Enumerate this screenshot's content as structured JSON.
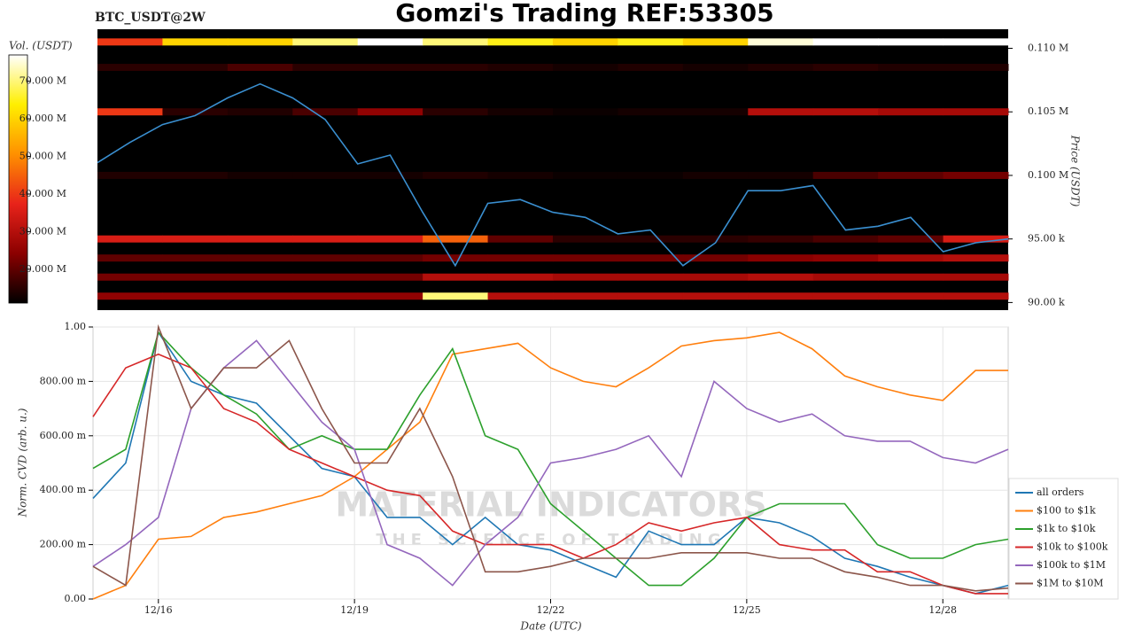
{
  "chart_data": [
    {
      "type": "heatmap",
      "title": "Gomzi's Trading REF:53305",
      "subtitle": "BTC_USDT@2W",
      "x_edges": [
        15,
        16,
        17,
        18,
        19,
        20,
        21,
        22,
        23,
        24,
        25,
        26,
        27,
        28,
        29
      ],
      "y": [
        110500,
        108500,
        105000,
        100000,
        95000,
        93500,
        92000,
        90500
      ],
      "z": [
        [
          40000000,
          60000000,
          60000000,
          70000000,
          77000000,
          70000000,
          65000000,
          60000000,
          65000000,
          60000000,
          75000000,
          77000000,
          77000000,
          77000000
        ],
        [
          15000000,
          15000000,
          18000000,
          15000000,
          15000000,
          15000000,
          14000000,
          13000000,
          14000000,
          13000000,
          14000000,
          15000000,
          14000000,
          14000000
        ],
        [
          40000000,
          15000000,
          14000000,
          18000000,
          25000000,
          15000000,
          13000000,
          12000000,
          13000000,
          13000000,
          30000000,
          30000000,
          28000000,
          28000000
        ],
        [
          14000000,
          14000000,
          13000000,
          13000000,
          13000000,
          14000000,
          13000000,
          12000000,
          12000000,
          13000000,
          13000000,
          18000000,
          20000000,
          22000000
        ],
        [
          35000000,
          35000000,
          35000000,
          35000000,
          35000000,
          45000000,
          20000000,
          15000000,
          15000000,
          15000000,
          16000000,
          18000000,
          20000000,
          35000000
        ],
        [
          20000000,
          20000000,
          20000000,
          20000000,
          20000000,
          22000000,
          22000000,
          22000000,
          22000000,
          22000000,
          24000000,
          25000000,
          28000000,
          30000000
        ],
        [
          22000000,
          22000000,
          22000000,
          22000000,
          22000000,
          30000000,
          30000000,
          28000000,
          28000000,
          28000000,
          30000000,
          28000000,
          28000000,
          28000000
        ],
        [
          25000000,
          25000000,
          25000000,
          25000000,
          25000000,
          70000000,
          30000000,
          30000000,
          30000000,
          30000000,
          30000000,
          30000000,
          30000000,
          30000000
        ]
      ],
      "price": {
        "color": "#3a8fd0",
        "x": [
          15,
          15.5,
          16,
          16.5,
          17,
          17.5,
          18,
          18.5,
          19,
          19.5,
          20,
          20.5,
          21,
          21.5,
          22,
          22.5,
          23,
          23.5,
          24,
          24.5,
          25,
          25.5,
          26,
          26.5,
          27,
          27.5,
          28,
          28.5,
          29
        ],
        "values": [
          101000,
          102600,
          104000,
          104700,
          106100,
          107200,
          106100,
          104400,
          100900,
          101600,
          97100,
          92900,
          97800,
          98100,
          97100,
          96700,
          95400,
          95700,
          92900,
          94700,
          98800,
          98800,
          99200,
          95700,
          96000,
          96700,
          94000,
          94700,
          95000
        ]
      },
      "xlim": [
        15,
        29
      ],
      "y2lim": [
        89400,
        111500
      ],
      "y2ticks": [
        {
          "value": 90000,
          "label": "90.00 k"
        },
        {
          "value": 95000,
          "label": "95.00 k"
        },
        {
          "value": 100000,
          "label": "0.100 M"
        },
        {
          "value": 105000,
          "label": "0.105 M"
        },
        {
          "value": 110000,
          "label": "0.110 M"
        }
      ],
      "y2label": "Price (USDT)",
      "colorbar": {
        "label": "Vol. (USDT)",
        "lim": [
          11000000,
          77000000
        ],
        "colors": [
          "#000000",
          "#8b0000",
          "#e8231a",
          "#ff9000",
          "#ffef00",
          "#ffffff"
        ],
        "ticks": [
          {
            "value": 20000000,
            "label": "20.000 M"
          },
          {
            "value": 30000000,
            "label": "30.000 M"
          },
          {
            "value": 40000000,
            "label": "40.000 M"
          },
          {
            "value": 50000000,
            "label": "50.000 M"
          },
          {
            "value": 60000000,
            "label": "60.000 M"
          },
          {
            "value": 70000000,
            "label": "70.000 M"
          }
        ]
      }
    },
    {
      "type": "line",
      "x": [
        15,
        15.5,
        16,
        16.5,
        17,
        17.5,
        18,
        18.5,
        19,
        19.5,
        20,
        20.5,
        21,
        21.5,
        22,
        22.5,
        23,
        23.5,
        24,
        24.5,
        25,
        25.5,
        26,
        26.5,
        27,
        27.5,
        28,
        28.5,
        29
      ],
      "series": [
        {
          "name": "all orders",
          "color": "#1f77b4",
          "values": [
            0.37,
            0.5,
            0.98,
            0.8,
            0.75,
            0.72,
            0.6,
            0.48,
            0.45,
            0.3,
            0.3,
            0.2,
            0.3,
            0.2,
            0.18,
            0.13,
            0.08,
            0.25,
            0.2,
            0.2,
            0.3,
            0.28,
            0.23,
            0.15,
            0.12,
            0.08,
            0.05,
            0.02,
            0.05
          ]
        },
        {
          "name": "$100 to $1k",
          "color": "#ff7f0e",
          "values": [
            0,
            0.05,
            0.22,
            0.23,
            0.3,
            0.32,
            0.35,
            0.38,
            0.45,
            0.55,
            0.65,
            0.9,
            0.92,
            0.94,
            0.85,
            0.8,
            0.78,
            0.85,
            0.93,
            0.95,
            0.96,
            0.98,
            0.92,
            0.82,
            0.78,
            0.75,
            0.73,
            0.84,
            0.84
          ]
        },
        {
          "name": "$1k to $10k",
          "color": "#2ca02c",
          "values": [
            0.48,
            0.55,
            0.98,
            0.85,
            0.75,
            0.68,
            0.55,
            0.6,
            0.55,
            0.55,
            0.75,
            0.92,
            0.6,
            0.55,
            0.35,
            0.25,
            0.15,
            0.05,
            0.05,
            0.15,
            0.3,
            0.35,
            0.35,
            0.35,
            0.2,
            0.15,
            0.15,
            0.2,
            0.22
          ]
        },
        {
          "name": "$10k to $100k",
          "color": "#d62728",
          "values": [
            0.67,
            0.85,
            0.9,
            0.85,
            0.7,
            0.65,
            0.55,
            0.5,
            0.45,
            0.4,
            0.38,
            0.25,
            0.2,
            0.2,
            0.2,
            0.15,
            0.2,
            0.28,
            0.25,
            0.28,
            0.3,
            0.2,
            0.18,
            0.18,
            0.1,
            0.1,
            0.05,
            0.02,
            0.02
          ]
        },
        {
          "name": "$100k to $1M",
          "color": "#9467bd",
          "values": [
            0.12,
            0.2,
            0.3,
            0.7,
            0.85,
            0.95,
            0.8,
            0.65,
            0.55,
            0.2,
            0.15,
            0.05,
            0.2,
            0.3,
            0.5,
            0.52,
            0.55,
            0.6,
            0.45,
            0.8,
            0.7,
            0.65,
            0.68,
            0.6,
            0.58,
            0.58,
            0.52,
            0.5,
            0.55
          ]
        },
        {
          "name": "$1M to $10M",
          "color": "#8c564b",
          "values": [
            0.12,
            0.05,
            1.0,
            0.7,
            0.85,
            0.85,
            0.95,
            0.7,
            0.5,
            0.5,
            0.7,
            0.45,
            0.1,
            0.1,
            0.12,
            0.15,
            0.15,
            0.15,
            0.17,
            0.17,
            0.17,
            0.15,
            0.15,
            0.1,
            0.08,
            0.05,
            0.05,
            0.03,
            0.04
          ]
        }
      ],
      "xlim": [
        15,
        29
      ],
      "ylim": [
        0,
        1
      ],
      "xticks": [
        {
          "value": 16,
          "label": "12/16"
        },
        {
          "value": 19,
          "label": "12/19"
        },
        {
          "value": 22,
          "label": "12/22"
        },
        {
          "value": 25,
          "label": "12/25"
        },
        {
          "value": 28,
          "label": "12/28"
        }
      ],
      "yticks": [
        {
          "value": 0,
          "label": "0.00"
        },
        {
          "value": 0.2,
          "label": "200.00 m"
        },
        {
          "value": 0.4,
          "label": "400.00 m"
        },
        {
          "value": 0.6,
          "label": "600.00 m"
        },
        {
          "value": 0.8,
          "label": "800.00 m"
        },
        {
          "value": 1,
          "label": "1.00"
        }
      ],
      "xlabel": "Date (UTC)",
      "ylabel": "Norm. CVD (arb. u.)",
      "grid": true,
      "legend": "lower right",
      "annotations": [
        "MATERIAL INDICATORS",
        "THE SCIENCE OF TRADING"
      ]
    }
  ]
}
